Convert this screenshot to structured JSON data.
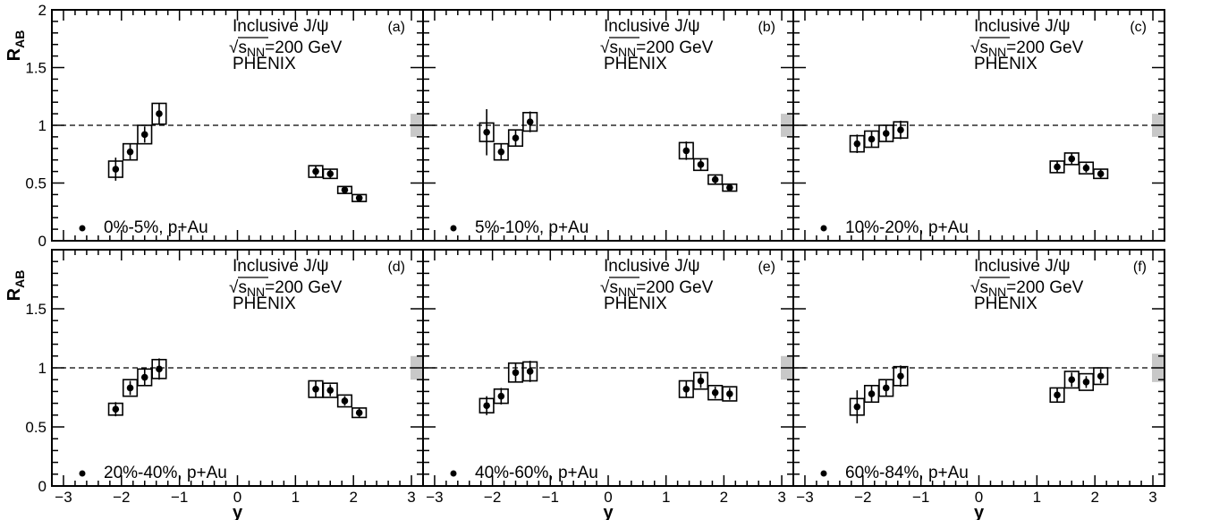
{
  "chart_data": {
    "type": "scatter",
    "xlabel": "y",
    "ylabel_main": "R",
    "ylabel_sub": "AB",
    "xlim": [
      -3.2,
      3.2
    ],
    "ylim": [
      0,
      2
    ],
    "xticks": [
      -3,
      -2,
      -1,
      0,
      1,
      2,
      3
    ],
    "yticks": [
      0,
      0.5,
      1,
      1.5,
      2
    ],
    "reference_line": 1,
    "annotation": {
      "line1": "Inclusive J/ψ",
      "sqrt_sym": "√",
      "sqrt_s": "s",
      "sqrt_sub": "NN",
      "energy": "=200 GeV",
      "experiment": "PHENIX"
    },
    "panels": [
      {
        "label": "(a)",
        "legend": "0%-5%, p+Au",
        "global_unc": [
          0.9,
          1.1
        ],
        "points": [
          {
            "x": -2.1,
            "y": 0.62,
            "stat": 0.1,
            "sys": 0.07
          },
          {
            "x": -1.85,
            "y": 0.77,
            "stat": 0.07,
            "sys": 0.07
          },
          {
            "x": -1.6,
            "y": 0.92,
            "stat": 0.07,
            "sys": 0.08
          },
          {
            "x": -1.35,
            "y": 1.1,
            "stat": 0.09,
            "sys": 0.09
          },
          {
            "x": 1.35,
            "y": 0.6,
            "stat": 0.05,
            "sys": 0.05
          },
          {
            "x": 1.6,
            "y": 0.58,
            "stat": 0.04,
            "sys": 0.04
          },
          {
            "x": 1.85,
            "y": 0.44,
            "stat": 0.03,
            "sys": 0.03
          },
          {
            "x": 2.1,
            "y": 0.37,
            "stat": 0.02,
            "sys": 0.03
          }
        ]
      },
      {
        "label": "(b)",
        "legend": "5%-10%, p+Au",
        "global_unc": [
          0.9,
          1.1
        ],
        "points": [
          {
            "x": -2.1,
            "y": 0.94,
            "stat": 0.2,
            "sys": 0.08
          },
          {
            "x": -1.85,
            "y": 0.77,
            "stat": 0.07,
            "sys": 0.07
          },
          {
            "x": -1.6,
            "y": 0.89,
            "stat": 0.07,
            "sys": 0.07
          },
          {
            "x": -1.35,
            "y": 1.03,
            "stat": 0.09,
            "sys": 0.08
          },
          {
            "x": 1.35,
            "y": 0.78,
            "stat": 0.08,
            "sys": 0.07
          },
          {
            "x": 1.6,
            "y": 0.66,
            "stat": 0.05,
            "sys": 0.05
          },
          {
            "x": 1.85,
            "y": 0.53,
            "stat": 0.04,
            "sys": 0.04
          },
          {
            "x": 2.1,
            "y": 0.46,
            "stat": 0.03,
            "sys": 0.03
          }
        ]
      },
      {
        "label": "(c)",
        "legend": "10%-20%, p+Au",
        "global_unc": [
          0.9,
          1.1
        ],
        "points": [
          {
            "x": -2.1,
            "y": 0.84,
            "stat": 0.08,
            "sys": 0.07
          },
          {
            "x": -1.85,
            "y": 0.88,
            "stat": 0.07,
            "sys": 0.07
          },
          {
            "x": -1.6,
            "y": 0.93,
            "stat": 0.07,
            "sys": 0.07
          },
          {
            "x": -1.35,
            "y": 0.96,
            "stat": 0.08,
            "sys": 0.07
          },
          {
            "x": 1.35,
            "y": 0.64,
            "stat": 0.05,
            "sys": 0.05
          },
          {
            "x": 1.6,
            "y": 0.71,
            "stat": 0.05,
            "sys": 0.05
          },
          {
            "x": 1.85,
            "y": 0.63,
            "stat": 0.04,
            "sys": 0.05
          },
          {
            "x": 2.1,
            "y": 0.58,
            "stat": 0.04,
            "sys": 0.04
          }
        ]
      },
      {
        "label": "(d)",
        "legend": "20%-40%, p+Au",
        "global_unc": [
          0.9,
          1.1
        ],
        "points": [
          {
            "x": -2.1,
            "y": 0.65,
            "stat": 0.06,
            "sys": 0.05
          },
          {
            "x": -1.85,
            "y": 0.83,
            "stat": 0.06,
            "sys": 0.07
          },
          {
            "x": -1.6,
            "y": 0.92,
            "stat": 0.07,
            "sys": 0.07
          },
          {
            "x": -1.35,
            "y": 0.99,
            "stat": 0.09,
            "sys": 0.08
          },
          {
            "x": 1.35,
            "y": 0.82,
            "stat": 0.07,
            "sys": 0.07
          },
          {
            "x": 1.6,
            "y": 0.81,
            "stat": 0.05,
            "sys": 0.06
          },
          {
            "x": 1.85,
            "y": 0.72,
            "stat": 0.04,
            "sys": 0.05
          },
          {
            "x": 2.1,
            "y": 0.62,
            "stat": 0.04,
            "sys": 0.04
          }
        ]
      },
      {
        "label": "(e)",
        "legend": "40%-60%, p+Au",
        "global_unc": [
          0.9,
          1.1
        ],
        "points": [
          {
            "x": -2.1,
            "y": 0.68,
            "stat": 0.08,
            "sys": 0.06
          },
          {
            "x": -1.85,
            "y": 0.76,
            "stat": 0.07,
            "sys": 0.06
          },
          {
            "x": -1.6,
            "y": 0.96,
            "stat": 0.08,
            "sys": 0.08
          },
          {
            "x": -1.35,
            "y": 0.97,
            "stat": 0.09,
            "sys": 0.08
          },
          {
            "x": 1.35,
            "y": 0.82,
            "stat": 0.07,
            "sys": 0.07
          },
          {
            "x": 1.6,
            "y": 0.89,
            "stat": 0.06,
            "sys": 0.07
          },
          {
            "x": 1.85,
            "y": 0.79,
            "stat": 0.05,
            "sys": 0.06
          },
          {
            "x": 2.1,
            "y": 0.78,
            "stat": 0.05,
            "sys": 0.06
          }
        ]
      },
      {
        "label": "(f)",
        "legend": "60%-84%, p+Au",
        "global_unc": [
          0.88,
          1.12
        ],
        "points": [
          {
            "x": -2.1,
            "y": 0.67,
            "stat": 0.14,
            "sys": 0.07
          },
          {
            "x": -1.85,
            "y": 0.78,
            "stat": 0.07,
            "sys": 0.07
          },
          {
            "x": -1.6,
            "y": 0.83,
            "stat": 0.07,
            "sys": 0.07
          },
          {
            "x": -1.35,
            "y": 0.93,
            "stat": 0.09,
            "sys": 0.08
          },
          {
            "x": 1.35,
            "y": 0.77,
            "stat": 0.06,
            "sys": 0.06
          },
          {
            "x": 1.6,
            "y": 0.9,
            "stat": 0.06,
            "sys": 0.07
          },
          {
            "x": 1.85,
            "y": 0.88,
            "stat": 0.05,
            "sys": 0.07
          },
          {
            "x": 2.1,
            "y": 0.93,
            "stat": 0.06,
            "sys": 0.07
          }
        ]
      }
    ]
  }
}
